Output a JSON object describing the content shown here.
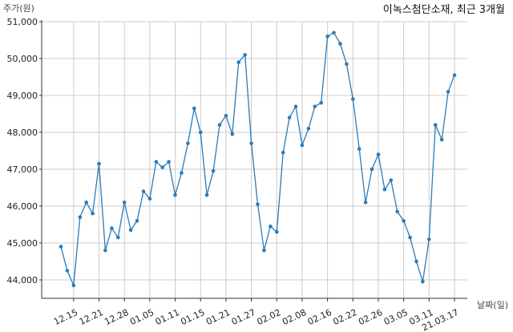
{
  "chart_data": {
    "type": "line",
    "title": "이녹스첨단소재, 최근 3개월",
    "ylabel": "주가(원)",
    "xlabel": "날짜(일)",
    "ylim": [
      43500,
      51000
    ],
    "yticks": [
      "44,000",
      "45,000",
      "46,000",
      "47,000",
      "48,000",
      "49,000",
      "50,000",
      "51,000"
    ],
    "ytick_values": [
      44000,
      45000,
      46000,
      47000,
      48000,
      49000,
      50000,
      51000
    ],
    "xtick_labels": [
      "12.15",
      "12.21",
      "12.28",
      "01.05",
      "01.11",
      "01.15",
      "01.21",
      "01.27",
      "02.02",
      "02.08",
      "02.16",
      "02.22",
      "02.26",
      "03.05",
      "03.11",
      "21.03.17"
    ],
    "xtick_index": [
      2,
      6,
      10,
      14,
      18,
      22,
      26,
      30,
      34,
      38,
      42,
      46,
      50,
      54,
      58,
      62
    ],
    "grid": true,
    "color": "#2b7bb9",
    "series": [
      {
        "values": [
          44900,
          44250,
          43850,
          45700,
          46100,
          45800,
          47150,
          44800,
          45400,
          45150,
          46100,
          45350,
          45600,
          46400,
          46200,
          47200,
          47050,
          47200,
          46300,
          46900,
          47700,
          48650,
          48000,
          46300,
          46950,
          48200,
          48450,
          47950,
          49900,
          50100,
          47700,
          46050,
          44800,
          45450,
          45300,
          47450,
          48400,
          48700,
          47650,
          48100,
          48700,
          48800,
          50600,
          50700,
          50400,
          49850,
          48900,
          47550,
          46100,
          47000,
          47400,
          46450,
          46700,
          45850,
          45600,
          45150,
          44500,
          43950,
          45100,
          48200,
          47800,
          49100,
          49550
        ]
      }
    ]
  }
}
